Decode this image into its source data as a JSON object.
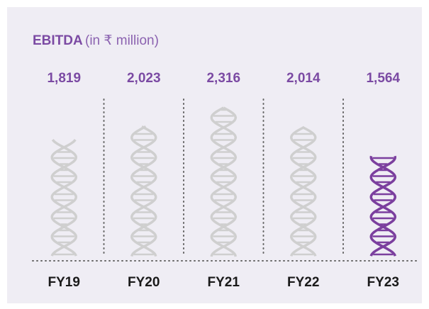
{
  "chart_data": {
    "type": "pictogram-bar",
    "title": "EBITDA",
    "subtitle": "(in ₹ million)",
    "categories": [
      "FY19",
      "FY20",
      "FY21",
      "FY22",
      "FY23"
    ],
    "values": [
      1819,
      2023,
      2316,
      2014,
      1564
    ],
    "value_labels": [
      "1,819",
      "2,023",
      "2,316",
      "2,014",
      "1,564"
    ],
    "colors": [
      "#cfcfcf",
      "#cfcfcf",
      "#cfcfcf",
      "#cfcfcf",
      "#7b3f9e"
    ],
    "label_color": "#7b4aa3"
  }
}
